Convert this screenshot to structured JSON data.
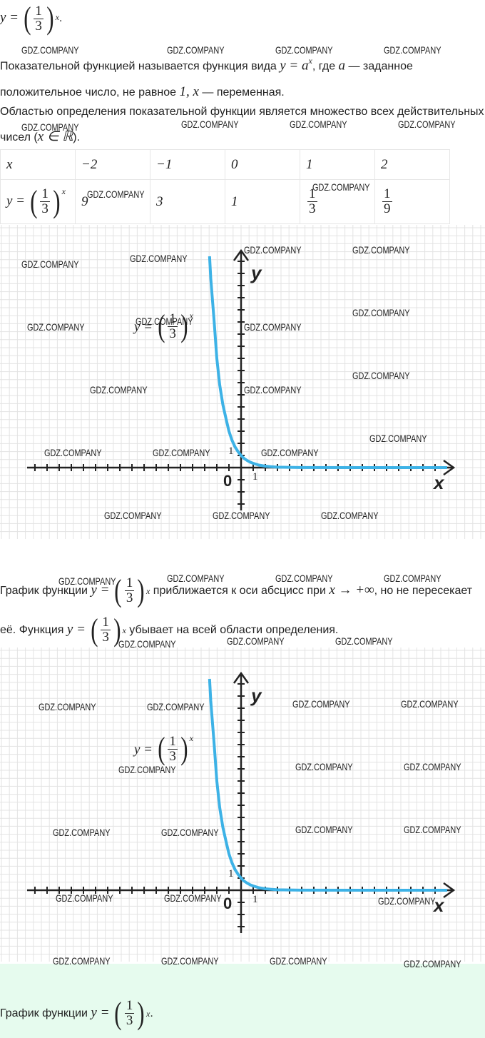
{
  "watermark": "GDZ.COMPANY",
  "top_formula": [
    {
      "text": "y = ",
      "math": true
    },
    {
      "open": "(",
      "num": "1",
      "den": "3",
      "close": ")",
      "sup": "x"
    },
    {
      "text": "."
    }
  ],
  "paragraphs": [
    [
      {
        "text": "Показательной функцией называется функция вида "
      },
      {
        "text": "y = a",
        "math": true
      },
      {
        "text": "x",
        "sup": true
      },
      {
        "text": ", где "
      },
      {
        "text": "a",
        "math": true
      },
      {
        "text": " — заданное положительное число, не равное "
      },
      {
        "text": "1, x",
        "math": true
      },
      {
        "text": " — переменная."
      }
    ],
    [
      {
        "text": "Областью определения показательной функции является множество всех действительных чисел ("
      },
      {
        "text": "x ∈ ℝ",
        "math": true
      },
      {
        "text": ")."
      }
    ],
    [
      {
        "text": "График функции "
      },
      {
        "text": "y = ",
        "math": true
      },
      {
        "open": "(",
        "num": "1",
        "den": "3",
        "close": ")",
        "sup": "x"
      },
      {
        "text": " приближается к оси абсцисс при "
      },
      {
        "text": "x → +∞",
        "math": true
      },
      {
        "text": ", но не пересекает её. Функция "
      },
      {
        "text": "y = ",
        "math": true
      },
      {
        "open": "(",
        "num": "1",
        "den": "3",
        "close": ")",
        "sup": "x"
      },
      {
        "text": " убывает на всей области определения."
      }
    ]
  ],
  "table": {
    "rows": [
      [
        [
          {
            "text": "x",
            "math": true
          }
        ],
        [
          {
            "text": "−2",
            "math": true
          }
        ],
        [
          {
            "text": "−1",
            "math": true
          }
        ],
        [
          {
            "text": "0",
            "math": true
          }
        ],
        [
          {
            "text": "1",
            "math": true
          }
        ],
        [
          {
            "text": "2",
            "math": true
          }
        ]
      ],
      [
        [
          {
            "text": "y = ",
            "math": true
          },
          {
            "open": "(",
            "num": "1",
            "den": "3",
            "close": ")",
            "sup": "x"
          }
        ],
        [
          {
            "text": "9",
            "math": true
          }
        ],
        [
          {
            "text": "3",
            "math": true
          }
        ],
        [
          {
            "text": "1",
            "math": true
          }
        ],
        [
          {
            "num": "1",
            "den": "3"
          }
        ],
        [
          {
            "num": "1",
            "den": "9"
          }
        ]
      ]
    ]
  },
  "graphs": [
    {
      "y_label": "y",
      "x_label": "x",
      "origin": "0",
      "one_y": "1",
      "one_x": "1",
      "formula": [
        {
          "text": "y = ",
          "math": true
        },
        {
          "open": "(",
          "num": "1",
          "den": "3",
          "close": ")",
          "sup": "x"
        }
      ]
    },
    {
      "y_label": "y",
      "x_label": "x",
      "origin": "0",
      "one_y": "1",
      "one_x": "1",
      "formula": [
        {
          "text": "y = ",
          "math": true
        },
        {
          "open": "(",
          "num": "1",
          "den": "3",
          "close": ")",
          "sup": "x"
        }
      ]
    }
  ],
  "caption": [
    {
      "text": "График функции "
    },
    {
      "text": "y = ",
      "math": true
    },
    {
      "open": "(",
      "num": "1",
      "den": "3",
      "close": ")",
      "sup": "x"
    },
    {
      "text": "."
    }
  ]
}
